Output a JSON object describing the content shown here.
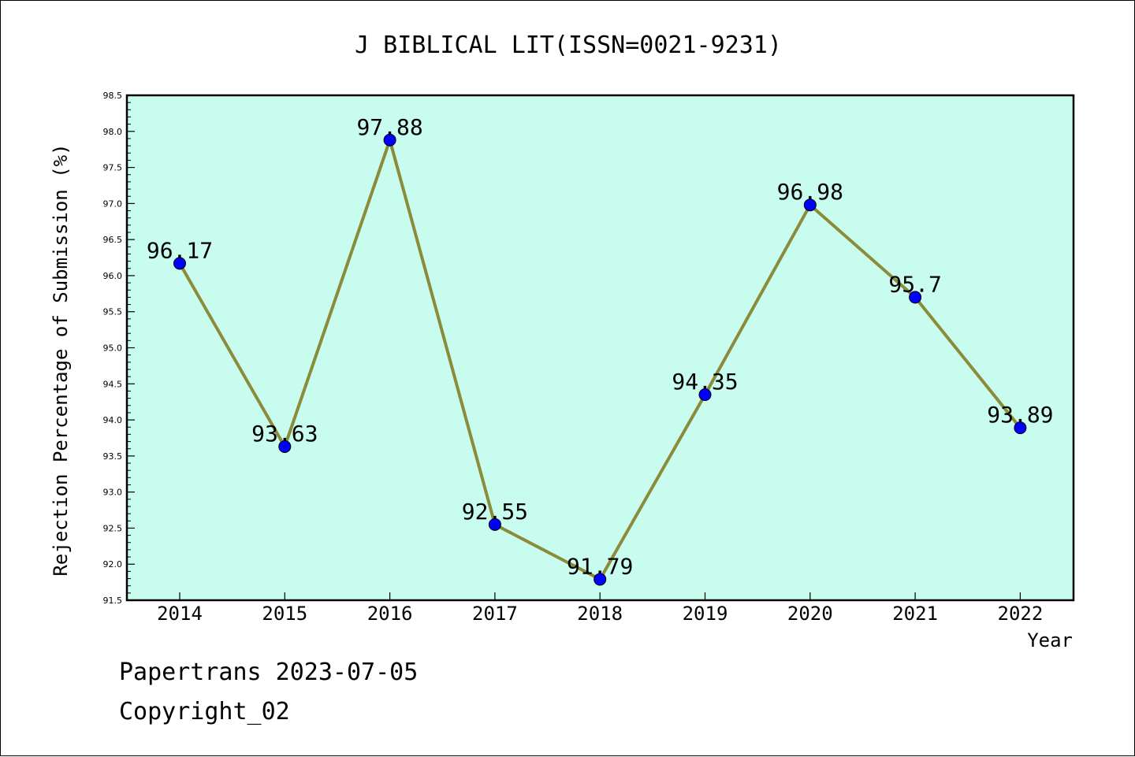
{
  "chart_data": {
    "type": "line",
    "title": "J BIBLICAL LIT(ISSN=0021-9231)",
    "xlabel": "Year",
    "ylabel": "Rejection Percentage of Submission (%)",
    "categories": [
      "2014",
      "2015",
      "2016",
      "2017",
      "2018",
      "2019",
      "2020",
      "2021",
      "2022"
    ],
    "values": [
      96.17,
      93.63,
      97.88,
      92.55,
      91.79,
      94.35,
      96.98,
      95.7,
      93.89
    ],
    "data_labels": [
      "96.17",
      "93.63",
      "97.88",
      "92.55",
      "91.79",
      "94.35",
      "96.98",
      "95.7",
      "93.89"
    ],
    "ylim": [
      91.5,
      98.5
    ],
    "ytick_step": 0.5,
    "ytick_labels": [
      "91.5",
      "92.0",
      "92.5",
      "93.0",
      "93.5",
      "94.0",
      "94.5",
      "95.0",
      "95.5",
      "96.0",
      "96.5",
      "97.0",
      "97.5",
      "98.0",
      "98.5"
    ],
    "grid": false,
    "colors": {
      "plot_background": "#c8fcee",
      "line": "#8b8b3a",
      "marker": "#0000ff"
    }
  },
  "footer": {
    "line1": "Papertrans 2023-07-05",
    "line2": "Copyright_02"
  }
}
